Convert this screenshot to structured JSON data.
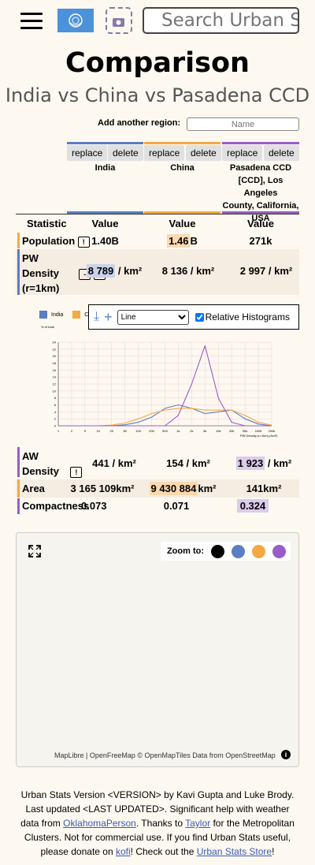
{
  "header": {
    "search_placeholder": "Search Urban Stats"
  },
  "page": {
    "title": "Comparison",
    "subtitle": "India vs China vs Pasadena CCD",
    "add_region_label": "Add another region:",
    "add_region_placeholder": "Name"
  },
  "columns": [
    {
      "name_lines": [
        "India"
      ],
      "color": "#5a7dc4",
      "replace": "replace",
      "delete": "delete"
    },
    {
      "name_lines": [
        "China"
      ],
      "color": "#f4a942",
      "replace": "replace",
      "delete": "delete"
    },
    {
      "name_lines": [
        "Pasadena CCD",
        "[CCD], Los Angeles",
        "County, California,",
        "USA"
      ],
      "color": "#9a5cc6",
      "replace": "replace",
      "delete": "delete"
    }
  ],
  "table": {
    "header_statistic": "Statistic",
    "header_value": "Value",
    "rows": [
      {
        "stat_lines": [
          "Population"
        ],
        "info": "!",
        "values": [
          "1.40",
          "1.46",
          "271"
        ],
        "units": [
          "B",
          "B",
          "k"
        ]
      },
      {
        "stat_lines": [
          "PW",
          "Density",
          "(r=1km)"
        ],
        "info": "!",
        "minus": "-",
        "values": [
          "8 789",
          "8 136",
          "2 997"
        ],
        "units": [
          "/ km²",
          "/ km²",
          "/ km²"
        ]
      },
      {
        "stat_lines": [
          "AW",
          "Density"
        ],
        "info": "!",
        "values": [
          "441",
          "154",
          "1 923"
        ],
        "units": [
          "/ km²",
          "/ km²",
          "/ km²"
        ]
      },
      {
        "stat_lines": [
          "Area"
        ],
        "values": [
          "3 165 109",
          "9 430 884",
          "141"
        ],
        "units": [
          "km²",
          "km²",
          "km²"
        ]
      },
      {
        "stat_lines": [
          "Compactness"
        ],
        "values": [
          "0.073",
          "0.071",
          "0.324"
        ],
        "units": [
          "",
          "",
          ""
        ]
      }
    ]
  },
  "histogram": {
    "type_selected": "Line",
    "relative_label": "Relative Histograms",
    "relative_checked": true,
    "legend": [
      "India",
      "China"
    ],
    "ylabel": "% of total",
    "xlabel": "PW Density (r=1km) (/km²)",
    "y_ticks": [
      "24",
      "22",
      "20",
      "18",
      "16",
      "14",
      "12",
      "10",
      "8",
      "6",
      "4",
      "2",
      "0"
    ],
    "x_ticks": [
      "1",
      "2",
      "5",
      "10",
      "20",
      "50",
      "100",
      "200",
      "500",
      "1k",
      "2k",
      "5k",
      "10k",
      "20k",
      "50k",
      "100k",
      "200k"
    ]
  },
  "chart_data": {
    "type": "line",
    "title": "",
    "xlabel": "PW Density (r=1km) (/km²)",
    "ylabel": "% of total",
    "x_scale": "log",
    "ylim": [
      0,
      24
    ],
    "x": [
      1,
      2,
      5,
      10,
      20,
      50,
      100,
      200,
      500,
      1000,
      2000,
      5000,
      10000,
      20000,
      50000,
      100000,
      200000
    ],
    "series": [
      {
        "name": "India",
        "color": "#5a7dc4",
        "values": [
          0,
          0,
          0,
          0,
          0,
          0.3,
          1,
          2.5,
          5,
          6,
          5,
          3.5,
          4,
          4.5,
          2,
          0.5,
          0
        ]
      },
      {
        "name": "China",
        "color": "#f4a942",
        "values": [
          0,
          0,
          0,
          0,
          0.2,
          0.8,
          2,
          3.5,
          4.5,
          5,
          5,
          4.5,
          4.5,
          4.5,
          3,
          1,
          0.2
        ]
      },
      {
        "color": "#9a5cc6",
        "values": [
          0,
          0,
          0,
          0,
          0,
          0,
          0,
          0,
          0,
          3,
          12,
          23,
          8,
          1,
          0,
          0,
          0
        ]
      }
    ]
  },
  "map": {
    "zoom_label": "Zoom to:",
    "zoom_colors": [
      "#000000",
      "#5a7dc4",
      "#f4a942",
      "#9a5cc6"
    ],
    "attribution": "MapLibre | OpenFreeMap © OpenMapTiles Data from OpenStreetMap"
  },
  "footer": {
    "t1": "Urban Stats Version <VERSION> by Kavi Gupta and Luke Brody. Last updated <LAST UPDATED>. Significant help with weather data from ",
    "l1": "OklahomaPerson",
    "t2": ". Thanks to ",
    "l2": "Taylor",
    "t3": " for the Metropolitan Clusters. Not for commercial use. If you find Urban Stats useful, please donate on ",
    "l3": "kofi",
    "t4": "! Check out the ",
    "l4": "Urban Stats Store",
    "t5": "!"
  }
}
